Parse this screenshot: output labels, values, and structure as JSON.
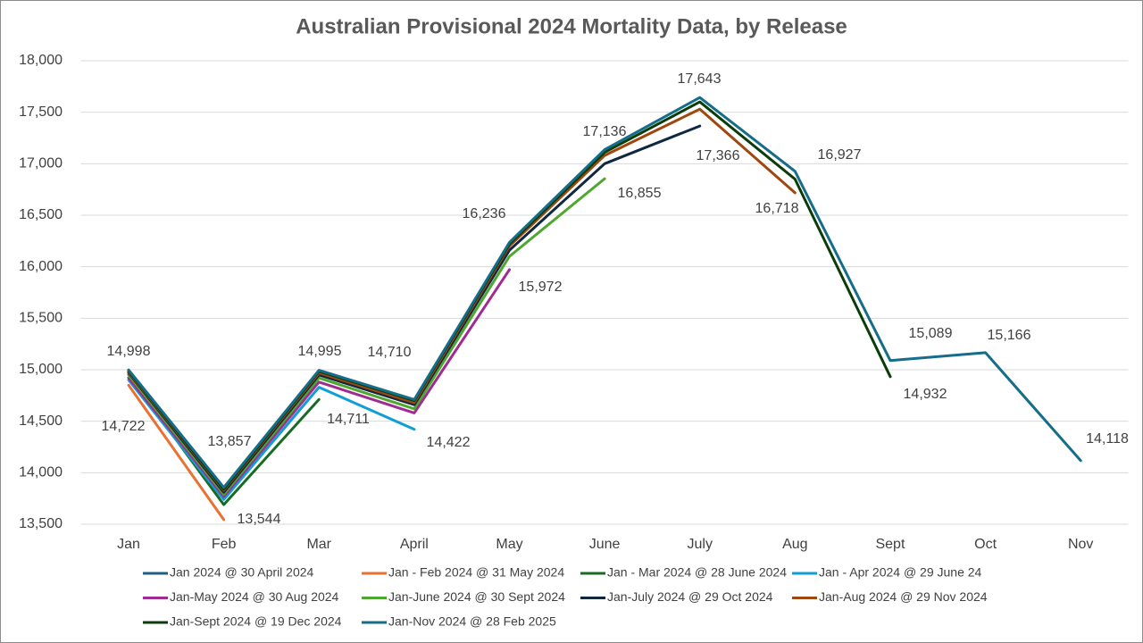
{
  "chart_data": {
    "type": "line",
    "title": "Australian Provisional 2024 Mortality Data, by Release",
    "categories": [
      "Jan",
      "Feb",
      "Mar",
      "April",
      "May",
      "June",
      "July",
      "Aug",
      "Sept",
      "Oct",
      "Nov"
    ],
    "ylim": [
      13500,
      18000
    ],
    "yticks": [
      {
        "value": 13500,
        "label": "13,500"
      },
      {
        "value": 14000,
        "label": "14,000"
      },
      {
        "value": 14500,
        "label": "14,500"
      },
      {
        "value": 15000,
        "label": "15,000"
      },
      {
        "value": 15500,
        "label": "15,500"
      },
      {
        "value": 16000,
        "label": "16,000"
      },
      {
        "value": 16500,
        "label": "16,500"
      },
      {
        "value": 17000,
        "label": "17,000"
      },
      {
        "value": 17500,
        "label": "17,500"
      },
      {
        "value": 18000,
        "label": "18,000"
      }
    ],
    "grid": true,
    "legend": "bottom",
    "series": [
      {
        "name": "Jan 2024 @ 30 April 2024",
        "color": "#1f5f86",
        "values": [
          14722,
          null,
          null,
          null,
          null,
          null,
          null,
          null,
          null,
          null,
          null
        ],
        "value_labels": [
          "14,722",
          null,
          null,
          null,
          null,
          null,
          null,
          null,
          null,
          null,
          null
        ]
      },
      {
        "name": "Jan - Feb 2024 @ 31 May 2024",
        "color": "#e97132",
        "values": [
          14850,
          13544,
          null,
          null,
          null,
          null,
          null,
          null,
          null,
          null,
          null
        ],
        "value_labels": [
          null,
          "13,544",
          null,
          null,
          null,
          null,
          null,
          null,
          null,
          null,
          null
        ]
      },
      {
        "name": "Jan - Mar 2024 @ 28 June 2024",
        "color": "#196b24",
        "values": [
          14950,
          13690,
          14711,
          null,
          null,
          null,
          null,
          null,
          null,
          null,
          null
        ],
        "value_labels": [
          null,
          null,
          "14,711",
          null,
          null,
          null,
          null,
          null,
          null,
          null,
          null
        ]
      },
      {
        "name": "Jan - Apr 2024 @ 29 June 24",
        "color": "#0f9ed5",
        "values": [
          14900,
          13740,
          14830,
          14422,
          null,
          null,
          null,
          null,
          null,
          null,
          null
        ],
        "value_labels": [
          null,
          null,
          null,
          "14,422",
          null,
          null,
          null,
          null,
          null,
          null,
          null
        ]
      },
      {
        "name": "Jan-May 2024 @ 30 Aug 2024",
        "color": "#a02b93",
        "values": [
          14920,
          13770,
          14880,
          14580,
          15972,
          null,
          null,
          null,
          null,
          null,
          null
        ],
        "value_labels": [
          null,
          null,
          null,
          null,
          "15,972",
          null,
          null,
          null,
          null,
          null,
          null
        ]
      },
      {
        "name": "Jan-June 2024 @ 30 Sept 2024",
        "color": "#4ea72e",
        "values": [
          14950,
          13790,
          14920,
          14620,
          16100,
          16855,
          null,
          null,
          null,
          null,
          null
        ],
        "value_labels": [
          null,
          null,
          null,
          null,
          null,
          "16,855",
          null,
          null,
          null,
          null,
          null
        ]
      },
      {
        "name": "Jan-July 2024 @ 29 Oct 2024",
        "color": "#0e2841",
        "values": [
          14970,
          13810,
          14950,
          14660,
          16160,
          17000,
          17366,
          null,
          null,
          null,
          null
        ],
        "value_labels": [
          null,
          null,
          null,
          null,
          null,
          null,
          "17,366",
          null,
          null,
          null,
          null
        ]
      },
      {
        "name": "Jan-Aug 2024 @ 29 Nov 2024",
        "color": "#a0460f",
        "values": [
          14980,
          13830,
          14970,
          14680,
          16200,
          17080,
          17530,
          16718,
          null,
          null,
          null
        ],
        "value_labels": [
          null,
          null,
          null,
          null,
          null,
          null,
          null,
          "16,718",
          null,
          null,
          null
        ]
      },
      {
        "name": "Jan-Sept 2024 @ 19 Dec 2024",
        "color": "#0b3d0b",
        "values": [
          14990,
          13840,
          14985,
          14700,
          16220,
          17110,
          17600,
          16850,
          14932,
          null,
          null
        ],
        "value_labels": [
          null,
          null,
          null,
          null,
          null,
          null,
          null,
          null,
          "14,932",
          null,
          null
        ]
      },
      {
        "name": "Jan-Nov 2024 @ 28 Feb 2025",
        "color": "#156d8a",
        "values": [
          14998,
          13857,
          14995,
          14710,
          16236,
          17136,
          17643,
          16927,
          15089,
          15166,
          14118
        ],
        "value_labels": [
          "14,998",
          "13,857",
          "14,995",
          "14,710",
          "16,236",
          "17,136",
          "17,643",
          "16,927",
          "15,089",
          "15,166",
          "14,118"
        ]
      }
    ]
  }
}
